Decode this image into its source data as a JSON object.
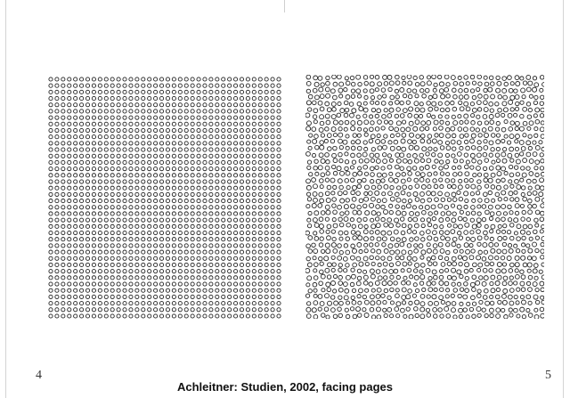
{
  "left_page": {
    "page_number": "4",
    "pattern": {
      "mark": "circle",
      "arrangement": "regular square grid",
      "columns": 38,
      "rows": 38
    }
  },
  "right_page": {
    "page_number": "5",
    "pattern": {
      "mark": "circle",
      "arrangement": "irregular jittered grid",
      "columns": 38,
      "rows": 38
    }
  },
  "caption": "Achleitner: Studien, 2002, facing pages",
  "colors": {
    "ink": "#222222",
    "paper": "#ffffff"
  }
}
